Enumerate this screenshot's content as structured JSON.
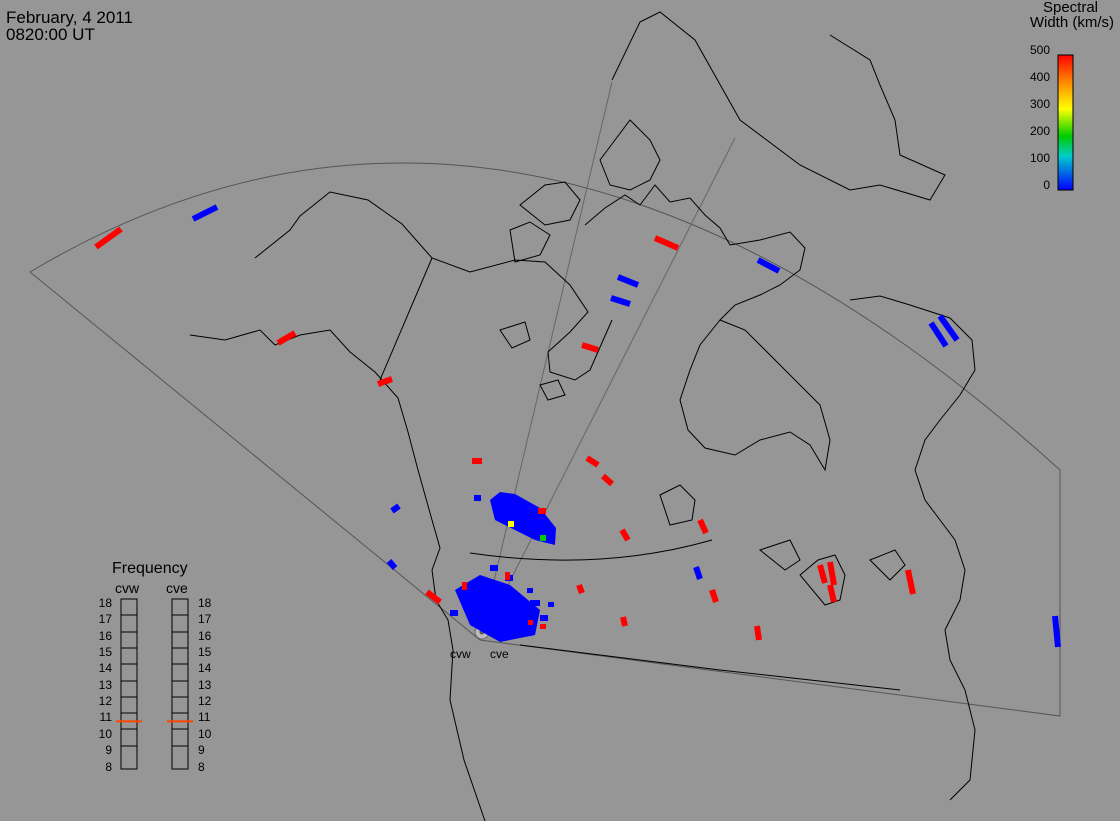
{
  "header": {
    "date": "February, 4 2011",
    "time": "0820:00 UT"
  },
  "colorbar": {
    "title_line1": "Spectral",
    "title_line2": "Width (km/s)",
    "ticks": [
      "500",
      "400",
      "300",
      "200",
      "100",
      "0"
    ],
    "colors": [
      "#ff0000",
      "#ff8800",
      "#ffff00",
      "#00cc00",
      "#00cccc",
      "#0000ff"
    ]
  },
  "frequency_panel": {
    "title": "Frequency",
    "radar_left": "cvw",
    "radar_right": "cve",
    "levels": [
      "18",
      "17",
      "16",
      "15",
      "14",
      "13",
      "12",
      "11",
      "10",
      "9",
      "8"
    ],
    "cvw_marker_value": 10.8,
    "cve_marker_value": 10.8,
    "marker_color": "#ff4400"
  },
  "sites": {
    "cvw": "cvw",
    "cve": "cve"
  },
  "colors": {
    "background": "#969696",
    "coast": "#000000",
    "fov": "#555555",
    "high_width": "#ff0000",
    "low_width": "#0000ff",
    "mid_width": "#00cc00",
    "yellow_width": "#ffff00"
  }
}
